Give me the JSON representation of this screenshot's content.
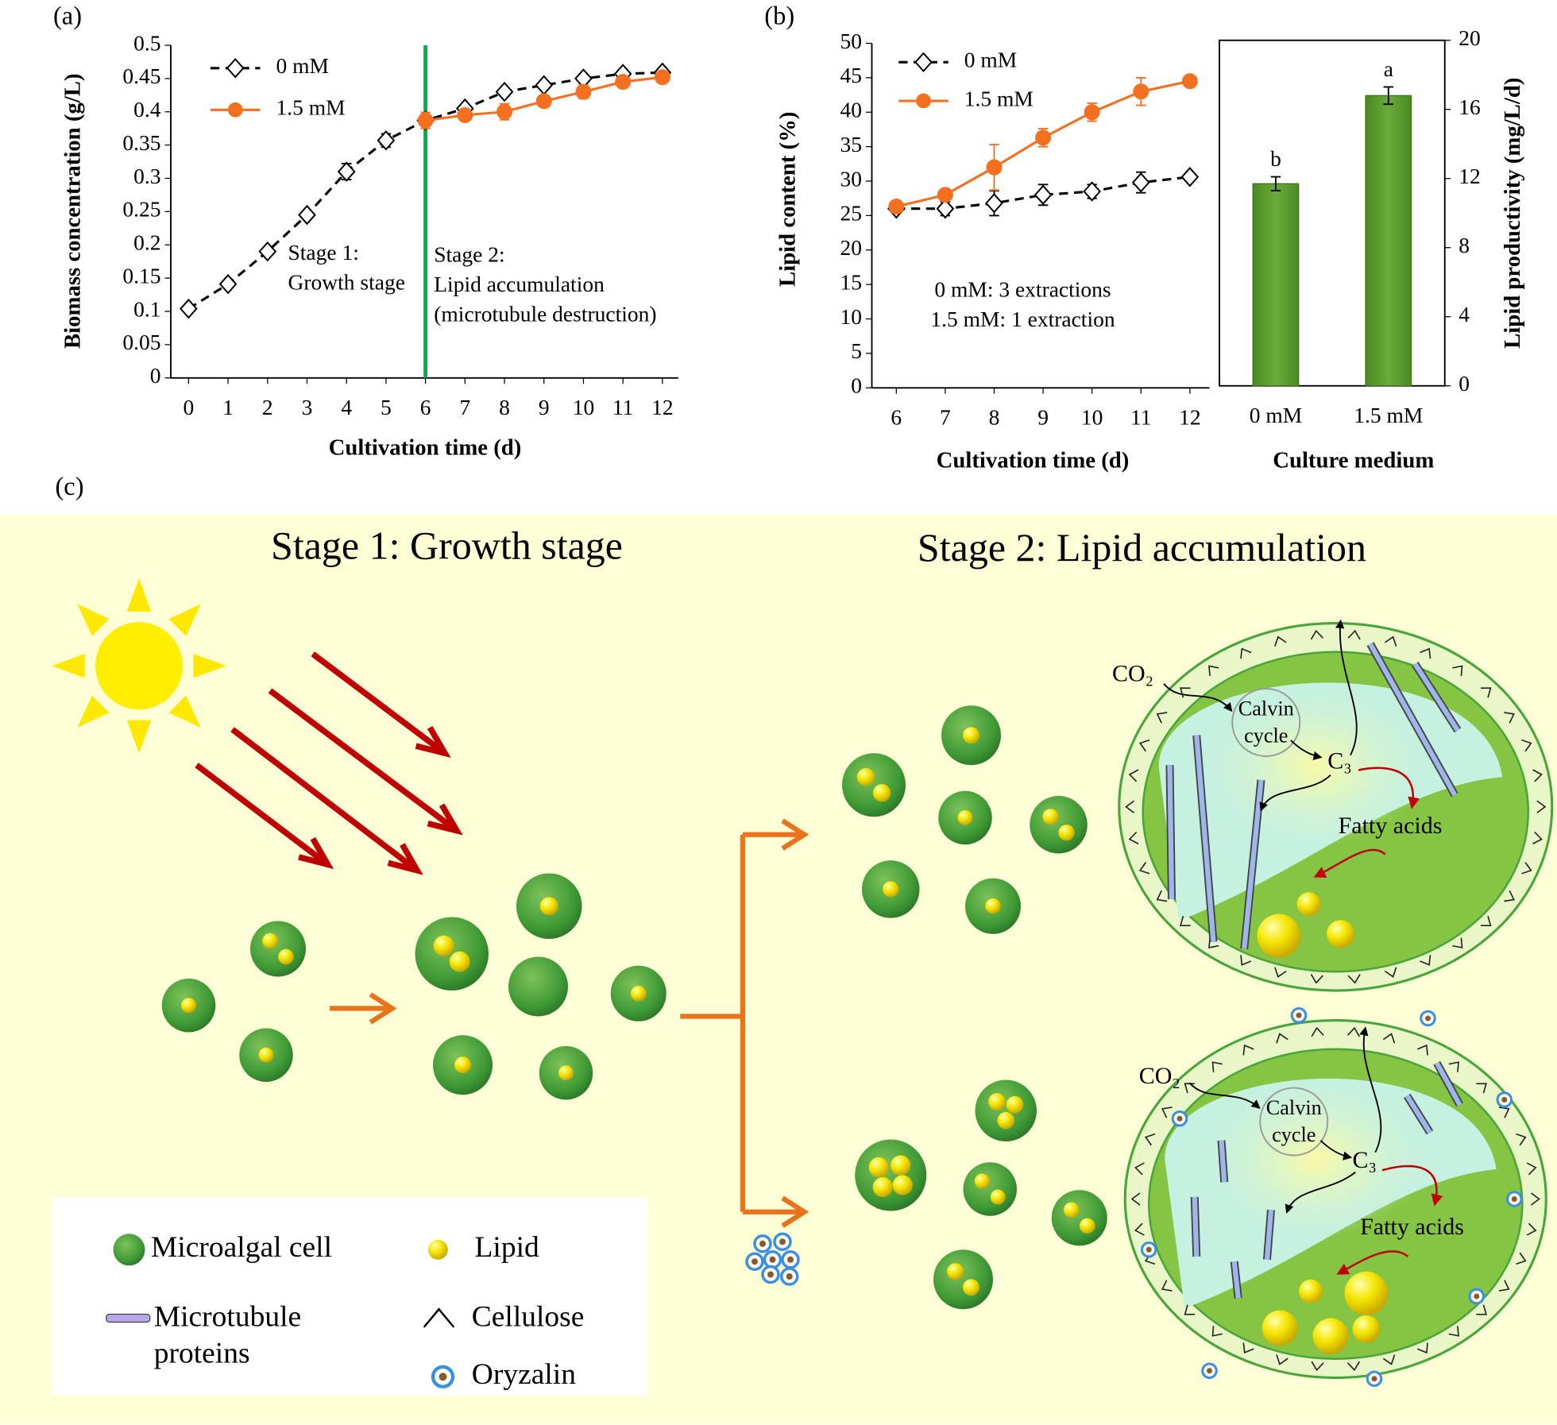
{
  "chart_data": [
    {
      "type": "line",
      "panel_label": "(a)",
      "xlabel": "Cultivation time (d)",
      "ylabel": "Biomass concentration (g/L)",
      "x": [
        0,
        1,
        2,
        3,
        4,
        5,
        6,
        7,
        8,
        9,
        10,
        11,
        12
      ],
      "xlim": [
        -0.45,
        12.4
      ],
      "xticks": [
        0,
        1,
        2,
        3,
        4,
        5,
        6,
        7,
        8,
        9,
        10,
        11,
        12
      ],
      "ylim": [
        0,
        0.5
      ],
      "yticks": [
        0,
        0.05,
        0.1,
        0.15,
        0.2,
        0.25,
        0.3,
        0.35,
        0.4,
        0.45,
        0.5
      ],
      "legend": "upper left",
      "series": [
        {
          "name": "0 mM",
          "color": "#000000",
          "marker": "diamond",
          "dashed": true,
          "values": [
            0.104,
            0.141,
            0.19,
            0.245,
            0.31,
            0.357,
            0.387,
            0.405,
            0.43,
            0.44,
            0.45,
            0.457,
            0.459
          ],
          "errors": [
            0.003,
            0.003,
            0.004,
            0.005,
            0.012,
            0.01,
            0.008,
            0.005,
            0.005,
            0.005,
            0.005,
            0.004,
            0.004
          ]
        },
        {
          "name": "1.5 mM",
          "color": "#f37021",
          "marker": "circle",
          "dashed": false,
          "values": [
            null,
            null,
            null,
            null,
            null,
            null,
            0.387,
            0.395,
            0.4,
            0.416,
            0.43,
            0.445,
            0.452
          ],
          "errors": [
            null,
            null,
            null,
            null,
            null,
            null,
            0.012,
            0.008,
            0.012,
            0.006,
            0.01,
            0.007,
            0.005
          ]
        }
      ],
      "divider": {
        "x": 6,
        "color": "#00b050"
      },
      "annotations": [
        [
          "Stage 1:",
          "Growth stage"
        ],
        [
          "Stage 2:",
          "Lipid accumulation",
          "(microtubule destruction)"
        ]
      ]
    },
    {
      "type": "line",
      "panel_label": "(b)",
      "xlabel": "Cultivation time (d)",
      "ylabel": "Lipid content (%)",
      "x": [
        6,
        7,
        8,
        9,
        10,
        11,
        12
      ],
      "xlim": [
        5.5,
        12.4
      ],
      "xticks": [
        6,
        7,
        8,
        9,
        10,
        11,
        12
      ],
      "ylim": [
        0,
        50
      ],
      "yticks": [
        0,
        5,
        10,
        15,
        20,
        25,
        30,
        35,
        40,
        45,
        50
      ],
      "legend": "upper left",
      "series": [
        {
          "name": "0 mM",
          "color": "#000000",
          "marker": "diamond",
          "dashed": true,
          "values": [
            26,
            26,
            26.8,
            28,
            28.5,
            29.8,
            30.6
          ],
          "errors": [
            0.5,
            1,
            1.8,
            1.5,
            1,
            1.5,
            0.5
          ]
        },
        {
          "name": "1.5 mM",
          "color": "#f37021",
          "marker": "circle",
          "dashed": false,
          "values": [
            26.3,
            28,
            32,
            36.3,
            40,
            43,
            44.5
          ],
          "errors": [
            0.5,
            0.8,
            3.3,
            1.3,
            1.3,
            2,
            0.5
          ]
        }
      ],
      "annotations": [
        [
          "0 mM: 3 extractions",
          "1.5 mM: 1 extraction"
        ]
      ]
    },
    {
      "type": "bar",
      "xlabel": "Culture medium",
      "y2label": "Lipid productivity (mg/L/d)",
      "categories": [
        "0 mM",
        "1.5 mM"
      ],
      "y2lim": [
        0,
        20
      ],
      "y2ticks": [
        0,
        4,
        8,
        12,
        16,
        20
      ],
      "series": [
        {
          "axis": "y2",
          "color": "#5b9a2e",
          "values": [
            11.7,
            16.8
          ],
          "errors": [
            0.4,
            0.5
          ],
          "significance_labels": [
            "b",
            "a"
          ]
        }
      ]
    }
  ],
  "diagram": {
    "panel_label": "(c)",
    "stage_titles": [
      "Stage 1: Growth stage",
      "Stage 2: Lipid accumulation"
    ],
    "cells": [
      {
        "co2": "CO₂",
        "calvin": [
          "Calvin",
          "cycle"
        ],
        "c3": "C₃",
        "fatty_acids": "Fatty acids"
      },
      {
        "co2": "CO₂",
        "calvin": [
          "Calvin",
          "cycle"
        ],
        "c3": "C₃",
        "fatty_acids": "Fatty acids"
      }
    ],
    "legend": {
      "microalgal_cell": "Microalgal cell",
      "lipid": "Lipid",
      "microtubule": [
        "Microtubule",
        "proteins"
      ],
      "cellulose": "Cellulose",
      "oryzalin": "Oryzalin"
    }
  }
}
